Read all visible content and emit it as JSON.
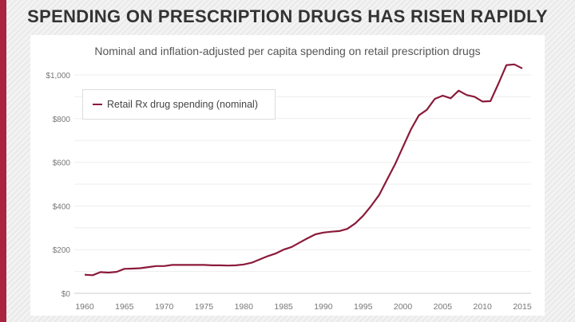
{
  "title": "SPENDING ON PRESCRIPTION DRUGS HAS RISEN RAPIDLY",
  "colors": {
    "accent_bar": "#a8243f",
    "line": "#8b1a3a"
  },
  "chart_data": {
    "type": "line",
    "title": "Nominal and inflation-adjusted per capita spending on retail prescription drugs",
    "xlabel": "",
    "ylabel": "",
    "ylim": [
      0,
      1000
    ],
    "xlim": [
      1959,
      2016
    ],
    "y_ticks": [
      0,
      200,
      400,
      600,
      800,
      1000
    ],
    "y_tick_labels": [
      "$0",
      "$200",
      "$400",
      "$600",
      "$800",
      "$1,000"
    ],
    "x_ticks": [
      1960,
      1965,
      1970,
      1975,
      1980,
      1985,
      1990,
      1995,
      2000,
      2005,
      2010,
      2015
    ],
    "x_tick_labels": [
      "1960",
      "1965",
      "1970",
      "1975",
      "1980",
      "1985",
      "1990",
      "1995",
      "2000",
      "2005",
      "2010",
      "2015"
    ],
    "grid": true,
    "legend": "top-left",
    "series": [
      {
        "name": "Retail Rx drug spending (nominal)",
        "x": [
          1960,
          1961,
          1962,
          1963,
          1964,
          1965,
          1966,
          1967,
          1968,
          1969,
          1970,
          1971,
          1972,
          1973,
          1974,
          1975,
          1976,
          1977,
          1978,
          1979,
          1980,
          1981,
          1982,
          1983,
          1984,
          1985,
          1986,
          1987,
          1988,
          1989,
          1990,
          1991,
          1992,
          1993,
          1994,
          1995,
          1996,
          1997,
          1998,
          1999,
          2000,
          2001,
          2002,
          2003,
          2004,
          2005,
          2006,
          2007,
          2008,
          2009,
          2010,
          2011,
          2012,
          2013,
          2014,
          2015
        ],
        "y": [
          85,
          83,
          97,
          95,
          98,
          112,
          113,
          115,
          120,
          125,
          125,
          130,
          130,
          130,
          130,
          130,
          128,
          128,
          127,
          128,
          132,
          140,
          155,
          170,
          182,
          200,
          212,
          232,
          252,
          270,
          278,
          282,
          285,
          295,
          320,
          355,
          400,
          450,
          520,
          590,
          670,
          750,
          815,
          840,
          890,
          905,
          893,
          928,
          908,
          900,
          878,
          880,
          960,
          1045,
          1048,
          1030
        ]
      }
    ]
  }
}
